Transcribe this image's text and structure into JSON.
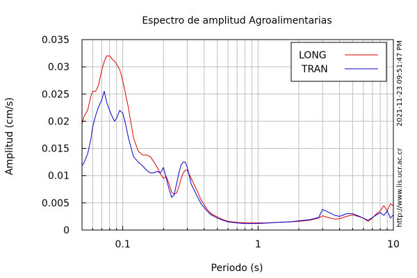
{
  "chart_data": {
    "type": "line",
    "title": "Espectro de amplitud Agroalimentarias",
    "xlabel": "Periodo (s)",
    "ylabel": "Amplitud (cm/s)",
    "x_scale": "log",
    "xlim": [
      0.05,
      10
    ],
    "ylim": [
      0,
      0.035
    ],
    "grid": true,
    "legend_position": "top-right",
    "x_ticks": [
      {
        "value": 0.1,
        "label": "0.1"
      },
      {
        "value": 1,
        "label": "1"
      },
      {
        "value": 10,
        "label": "10"
      }
    ],
    "y_ticks": [
      {
        "value": 0,
        "label": "0"
      },
      {
        "value": 0.005,
        "label": "0.005"
      },
      {
        "value": 0.01,
        "label": "0.01"
      },
      {
        "value": 0.015,
        "label": "0.015"
      },
      {
        "value": 0.02,
        "label": "0.02"
      },
      {
        "value": 0.025,
        "label": "0.025"
      },
      {
        "value": 0.03,
        "label": "0.03"
      },
      {
        "value": 0.035,
        "label": "0.035"
      }
    ],
    "side_annotations": [
      "2021-11-23 09:51:47 PM",
      "http://www.lis.ucr.ac.cr"
    ],
    "series": [
      {
        "name": "LONG",
        "color": "#dd0000",
        "x": [
          0.05,
          0.052,
          0.055,
          0.058,
          0.06,
          0.063,
          0.066,
          0.07,
          0.073,
          0.076,
          0.08,
          0.083,
          0.087,
          0.09,
          0.095,
          0.1,
          0.105,
          0.11,
          0.12,
          0.13,
          0.14,
          0.15,
          0.16,
          0.17,
          0.18,
          0.19,
          0.2,
          0.21,
          0.22,
          0.23,
          0.24,
          0.25,
          0.26,
          0.27,
          0.28,
          0.29,
          0.3,
          0.32,
          0.35,
          0.38,
          0.42,
          0.45,
          0.5,
          0.55,
          0.6,
          0.7,
          0.8,
          0.9,
          1.0,
          1.2,
          1.4,
          1.7,
          2.0,
          2.4,
          2.8,
          3.0,
          3.3,
          3.7,
          4.0,
          4.5,
          5.0,
          5.5,
          6.0,
          6.5,
          7.0,
          7.5,
          8.0,
          8.5,
          9.0,
          9.5,
          10.0
        ],
        "y": [
          0.0195,
          0.021,
          0.022,
          0.0245,
          0.0255,
          0.0255,
          0.0265,
          0.0295,
          0.031,
          0.032,
          0.032,
          0.0315,
          0.031,
          0.0305,
          0.0295,
          0.0275,
          0.025,
          0.0225,
          0.017,
          0.0145,
          0.0138,
          0.0138,
          0.0135,
          0.0125,
          0.0115,
          0.0103,
          0.0095,
          0.0098,
          0.0085,
          0.007,
          0.0066,
          0.0068,
          0.008,
          0.0095,
          0.0105,
          0.011,
          0.011,
          0.0095,
          0.0075,
          0.0055,
          0.0038,
          0.003,
          0.0024,
          0.0019,
          0.0016,
          0.0014,
          0.0013,
          0.0013,
          0.0013,
          0.0013,
          0.0014,
          0.0015,
          0.0016,
          0.0018,
          0.0022,
          0.0026,
          0.0023,
          0.002,
          0.0021,
          0.0025,
          0.0028,
          0.0025,
          0.0022,
          0.0016,
          0.0022,
          0.003,
          0.0035,
          0.0045,
          0.0035,
          0.0048,
          0.0045
        ]
      },
      {
        "name": "TRAN",
        "color": "#0000cc",
        "x": [
          0.05,
          0.052,
          0.055,
          0.058,
          0.06,
          0.063,
          0.066,
          0.07,
          0.073,
          0.076,
          0.08,
          0.083,
          0.087,
          0.09,
          0.095,
          0.1,
          0.105,
          0.11,
          0.12,
          0.13,
          0.14,
          0.15,
          0.16,
          0.17,
          0.18,
          0.19,
          0.2,
          0.21,
          0.22,
          0.23,
          0.24,
          0.25,
          0.26,
          0.27,
          0.28,
          0.29,
          0.3,
          0.32,
          0.35,
          0.38,
          0.42,
          0.45,
          0.5,
          0.55,
          0.6,
          0.7,
          0.8,
          0.9,
          1.0,
          1.2,
          1.4,
          1.7,
          2.0,
          2.4,
          2.8,
          3.0,
          3.3,
          3.7,
          4.0,
          4.5,
          5.0,
          5.5,
          6.0,
          6.5,
          7.0,
          7.5,
          8.0,
          8.5,
          9.0,
          9.5,
          10.0
        ],
        "y": [
          0.0118,
          0.0125,
          0.014,
          0.0165,
          0.019,
          0.021,
          0.0225,
          0.024,
          0.0255,
          0.0235,
          0.022,
          0.021,
          0.02,
          0.0205,
          0.022,
          0.0215,
          0.0195,
          0.017,
          0.0135,
          0.0125,
          0.0118,
          0.011,
          0.0105,
          0.0105,
          0.0108,
          0.0105,
          0.0115,
          0.0095,
          0.0075,
          0.006,
          0.0065,
          0.0085,
          0.0105,
          0.012,
          0.0125,
          0.0125,
          0.0115,
          0.0085,
          0.0065,
          0.0048,
          0.0035,
          0.0028,
          0.0022,
          0.0018,
          0.0015,
          0.0013,
          0.0012,
          0.0012,
          0.0012,
          0.0013,
          0.0014,
          0.0015,
          0.0017,
          0.0019,
          0.0023,
          0.0038,
          0.0033,
          0.0027,
          0.0025,
          0.003,
          0.003,
          0.0026,
          0.0022,
          0.0018,
          0.0023,
          0.0028,
          0.0032,
          0.0027,
          0.0035,
          0.0022,
          0.0028
        ]
      }
    ]
  }
}
